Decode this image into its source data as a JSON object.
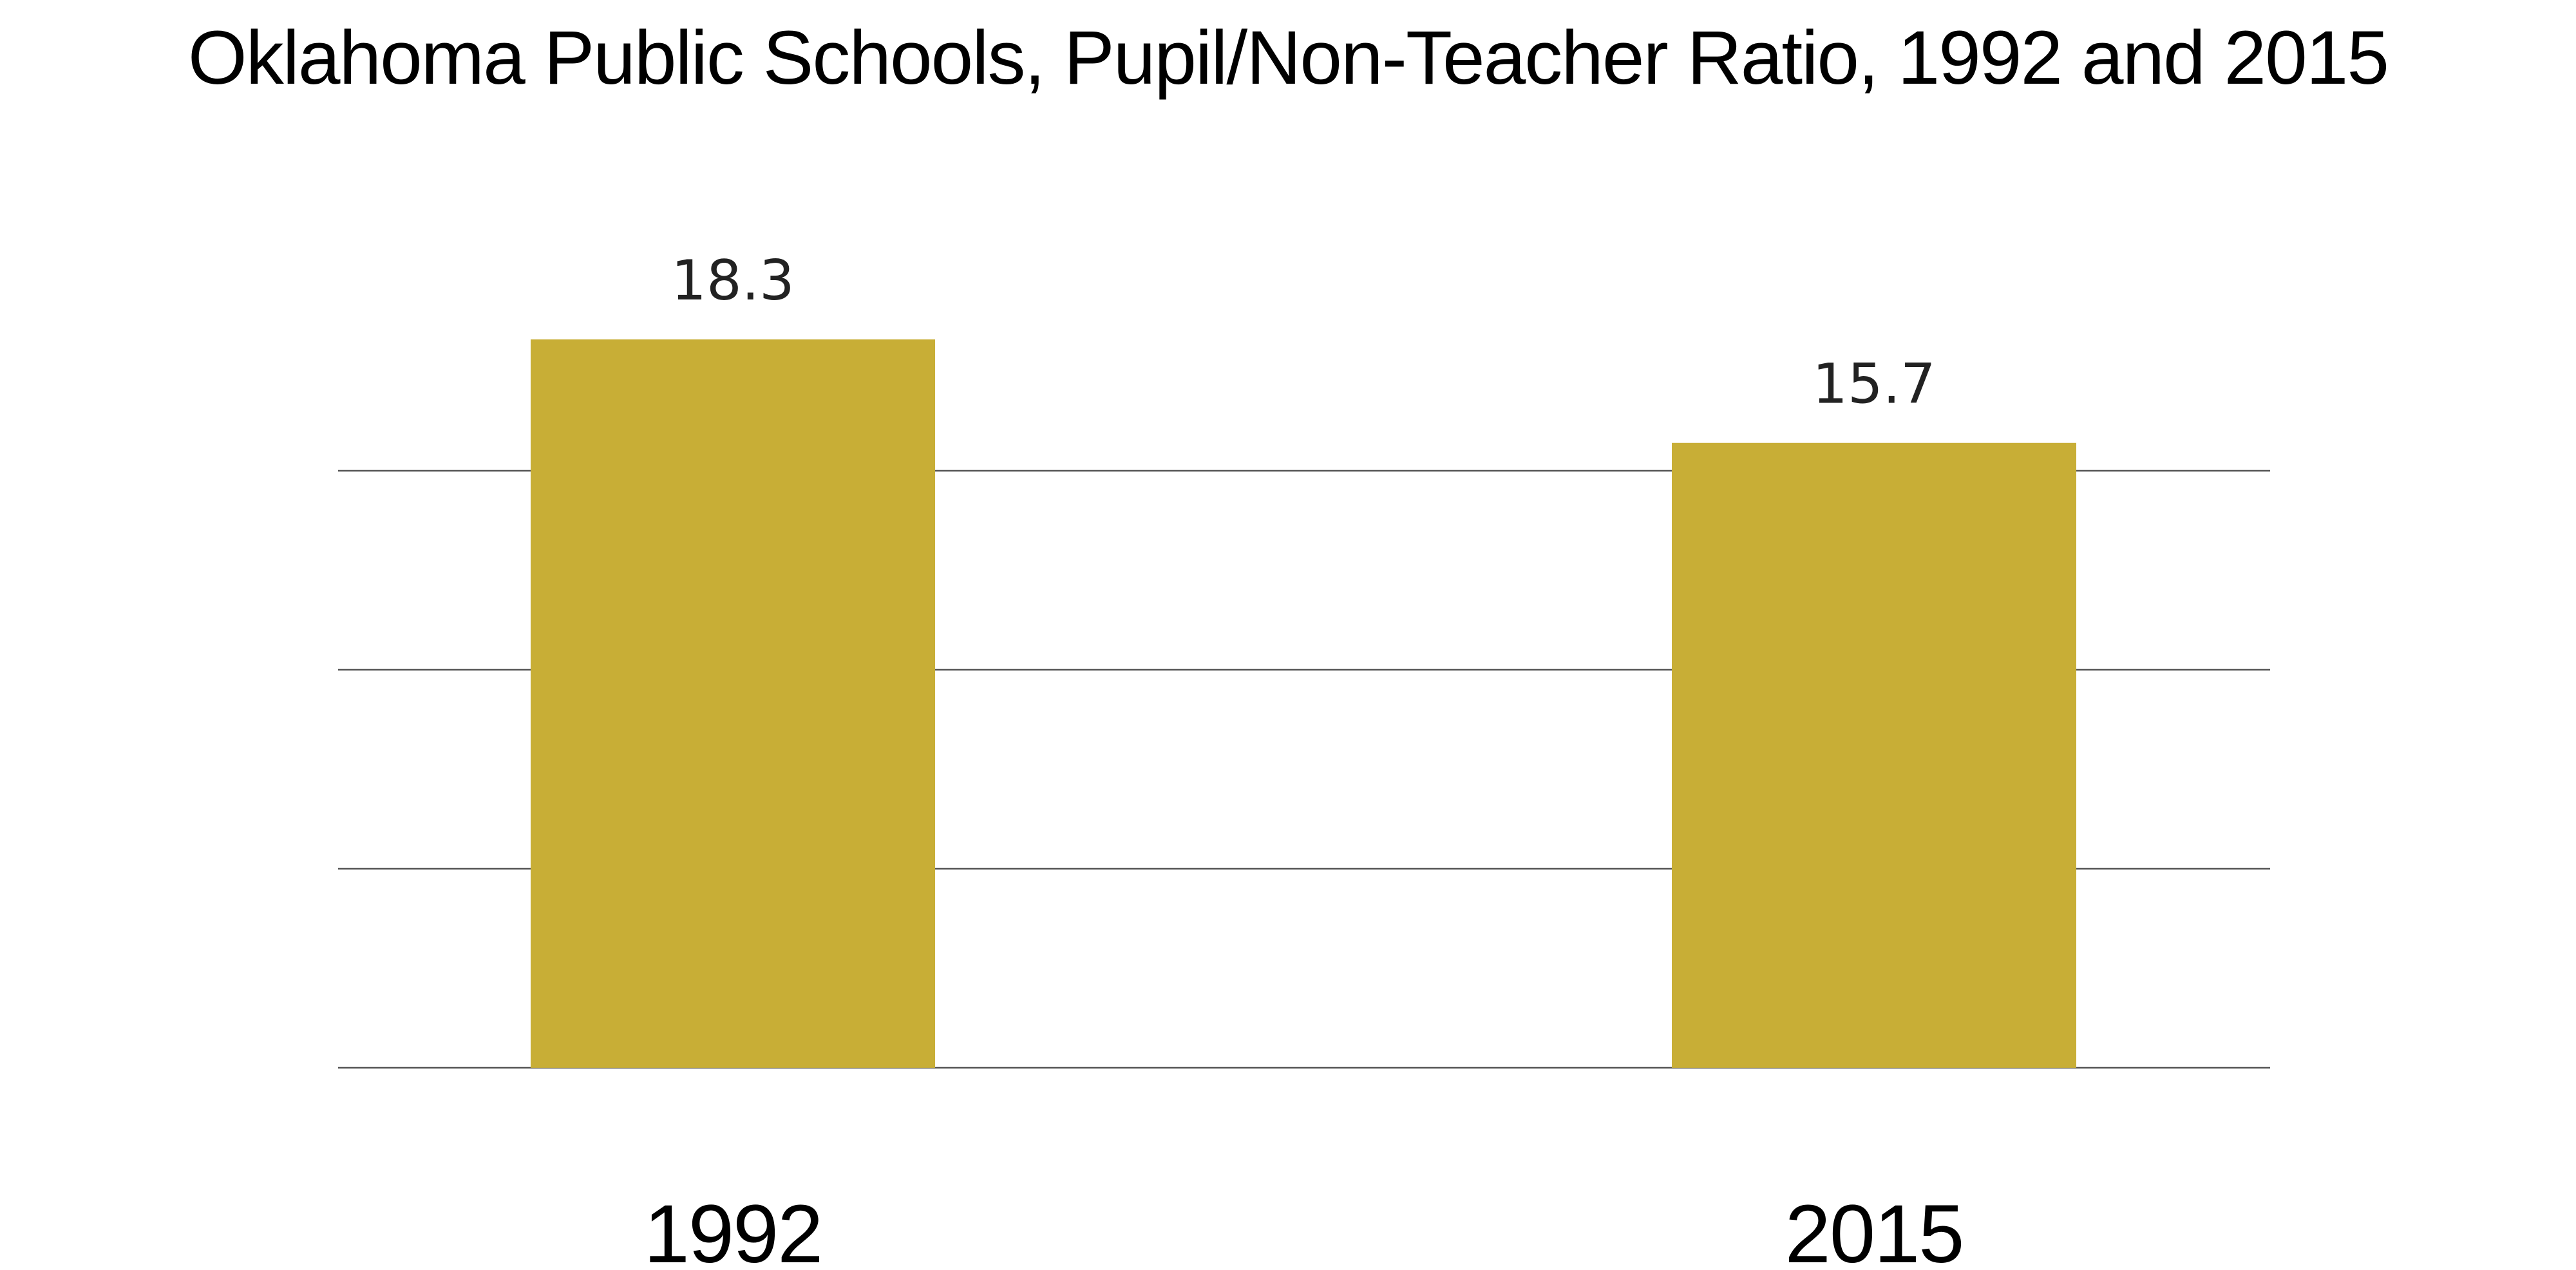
{
  "chart_data": {
    "type": "bar",
    "title": "Oklahoma Public Schools, Pupil/Non-Teacher Ratio, 1992 and 2015",
    "categories": [
      "1992",
      "2015"
    ],
    "values": [
      18.3,
      15.7
    ],
    "value_labels": [
      "18.3",
      "15.7"
    ],
    "xlabel": "",
    "ylabel": "",
    "ylim": [
      0,
      20
    ],
    "gridlines": [
      0,
      5,
      10,
      15
    ],
    "grid": true,
    "legend": "none",
    "bar_color": "#C8AE36"
  }
}
